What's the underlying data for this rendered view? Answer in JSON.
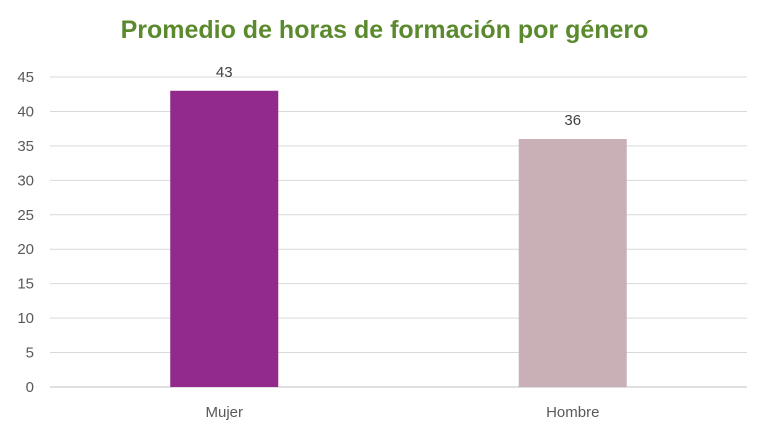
{
  "chart_data": {
    "type": "bar",
    "title": "Promedio de horas de formación por género",
    "categories": [
      "Mujer",
      "Hombre"
    ],
    "values": [
      43,
      36
    ],
    "data_labels": [
      "43",
      "36"
    ],
    "ylim": [
      0,
      45
    ],
    "yticks": [
      0,
      5,
      10,
      15,
      20,
      25,
      30,
      35,
      40,
      45
    ],
    "xlabel": "",
    "ylabel": "",
    "grid": true,
    "legend": "none"
  },
  "colors": {
    "title": "#5B8A2E",
    "bars": [
      "#912A8A",
      "#C9AFB6"
    ],
    "grid": "#D9D9D9",
    "axis": "#BFBFBF"
  }
}
